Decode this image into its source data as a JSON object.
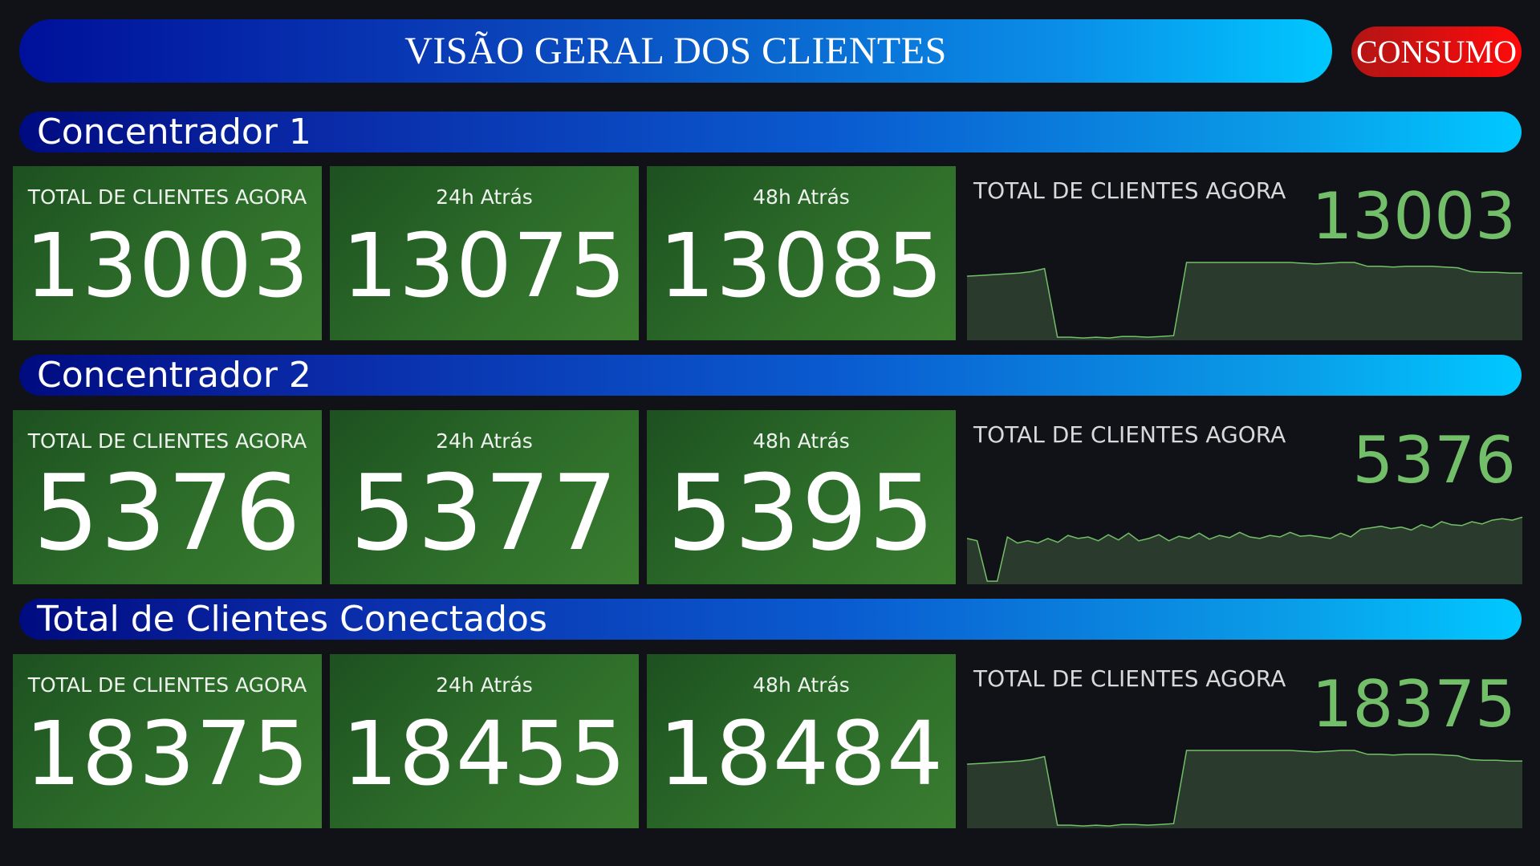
{
  "header": {
    "title": "VISÃO GERAL DOS CLIENTES",
    "consumo_label": "CONSUMO"
  },
  "sections": [
    {
      "title": "Concentrador 1",
      "now_label": "TOTAL DE CLIENTES AGORA",
      "now_value": "13003",
      "h24_label": "24h Atrás",
      "h24_value": "13075",
      "h48_label": "48h Atrás",
      "h48_value": "13085",
      "graph_label": "TOTAL DE CLIENTES AGORA",
      "graph_value": "13003"
    },
    {
      "title": "Concentrador 2",
      "now_label": "TOTAL DE CLIENTES AGORA",
      "now_value": "5376",
      "h24_label": "24h Atrás",
      "h24_value": "5377",
      "h48_label": "48h Atrás",
      "h48_value": "5395",
      "graph_label": "TOTAL DE CLIENTES AGORA",
      "graph_value": "5376"
    },
    {
      "title": "Total de Clientes Conectados",
      "now_label": "TOTAL DE CLIENTES AGORA",
      "now_value": "18375",
      "h24_label": "24h Atrás",
      "h24_value": "18455",
      "h48_label": "48h Atrás",
      "h48_value": "18484",
      "graph_label": "TOTAL DE CLIENTES AGORA",
      "graph_value": "18375"
    }
  ],
  "colors": {
    "accent_green": "#73bf69",
    "sparkline_fill": "#2a3a2c",
    "consumo_red": "#ff0a0a",
    "panel_green": "#2d6d2a"
  },
  "chart_data": [
    {
      "type": "area",
      "title": "",
      "values": [
        0.82,
        0.83,
        0.84,
        0.85,
        0.86,
        0.88,
        0.92,
        0.02,
        0.02,
        0.01,
        0.02,
        0.01,
        0.03,
        0.03,
        0.02,
        0.03,
        0.04,
        1.0,
        1.0,
        1.0,
        1.0,
        1.0,
        1.0,
        1.0,
        1.0,
        1.0,
        0.99,
        0.98,
        0.99,
        1.0,
        1.0,
        0.95,
        0.95,
        0.94,
        0.95,
        0.95,
        0.95,
        0.94,
        0.93,
        0.88,
        0.87,
        0.87,
        0.86,
        0.86
      ]
    },
    {
      "type": "area",
      "title": "",
      "values": [
        0.58,
        0.55,
        0.02,
        0.02,
        0.6,
        0.52,
        0.55,
        0.52,
        0.58,
        0.53,
        0.62,
        0.58,
        0.6,
        0.55,
        0.63,
        0.56,
        0.65,
        0.55,
        0.58,
        0.63,
        0.55,
        0.61,
        0.58,
        0.65,
        0.57,
        0.62,
        0.59,
        0.66,
        0.6,
        0.58,
        0.62,
        0.6,
        0.66,
        0.61,
        0.62,
        0.6,
        0.58,
        0.65,
        0.6,
        0.7,
        0.72,
        0.74,
        0.71,
        0.73,
        0.69,
        0.76,
        0.72,
        0.8,
        0.76,
        0.75,
        0.8,
        0.77,
        0.82,
        0.84,
        0.82,
        0.86
      ]
    },
    {
      "type": "area",
      "title": "",
      "values": [
        0.82,
        0.83,
        0.84,
        0.85,
        0.86,
        0.88,
        0.92,
        0.02,
        0.02,
        0.01,
        0.02,
        0.01,
        0.03,
        0.03,
        0.02,
        0.03,
        0.04,
        1.0,
        1.0,
        1.0,
        1.0,
        1.0,
        1.0,
        1.0,
        1.0,
        1.0,
        0.99,
        0.98,
        0.99,
        1.0,
        1.0,
        0.95,
        0.95,
        0.94,
        0.95,
        0.95,
        0.95,
        0.94,
        0.93,
        0.88,
        0.87,
        0.87,
        0.86,
        0.86
      ]
    }
  ]
}
